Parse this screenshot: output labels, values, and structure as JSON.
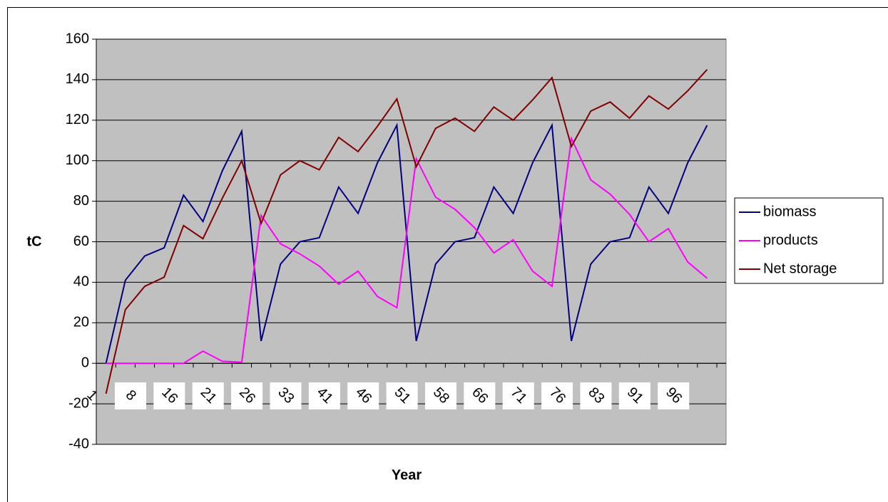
{
  "chart_data": {
    "type": "line",
    "ylabel": "tC",
    "xlabel": "Year",
    "categories": [
      "1",
      null,
      "8",
      null,
      "16",
      null,
      "21",
      null,
      "26",
      null,
      "33",
      null,
      "41",
      null,
      "46",
      null,
      "51",
      null,
      "58",
      null,
      "66",
      null,
      "71",
      null,
      "76",
      null,
      "83",
      null,
      "91",
      null,
      "96",
      null
    ],
    "series": [
      {
        "name": "biomass",
        "color": "#000080",
        "values": [
          0,
          41,
          53,
          57,
          83,
          70,
          95,
          114.5,
          11,
          49,
          60,
          62,
          87,
          74,
          99,
          117.5,
          11,
          49,
          60,
          62,
          87,
          74,
          99,
          117.5,
          11,
          49,
          60,
          62,
          87,
          74,
          99,
          117.5
        ]
      },
      {
        "name": "products",
        "color": "#ff00ff",
        "values": [
          0,
          0,
          0,
          0,
          0,
          6,
          1,
          0.5,
          73,
          59,
          54,
          48,
          39,
          45.5,
          33,
          27.5,
          101,
          82,
          76,
          67,
          54.5,
          61,
          45.5,
          38,
          111,
          90.5,
          83.5,
          73.5,
          60,
          66.5,
          50,
          42
        ]
      },
      {
        "name": "Net storage",
        "color": "#800000",
        "values": [
          -15,
          26.5,
          38,
          42.5,
          68,
          61.5,
          81.5,
          100,
          69,
          93,
          100,
          95.5,
          111.5,
          104.5,
          117,
          130.5,
          97,
          116,
          121,
          114.5,
          126.5,
          120,
          130,
          141,
          107,
          124.5,
          129,
          121,
          132,
          125.5,
          134.5,
          145
        ]
      }
    ],
    "ylim": [
      -40,
      160
    ],
    "yticks": [
      -40,
      -20,
      0,
      20,
      40,
      60,
      80,
      100,
      120,
      140,
      160
    ],
    "grid": true,
    "legend": "right",
    "plot_background": "#c0c0c0"
  }
}
